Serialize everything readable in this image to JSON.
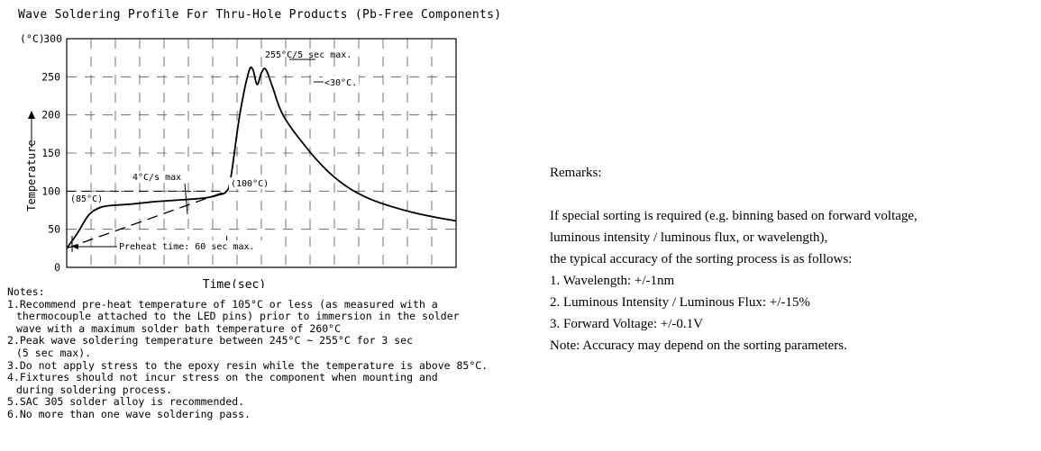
{
  "chart_data": {
    "type": "line",
    "title": "Wave Soldering Profile For Thru-Hole Products (Pb-Free Components)",
    "ylabel": "Temperature",
    "y_unit_label": "(°C)",
    "xlabel": "Time(sec)",
    "ylim": [
      0,
      300
    ],
    "y_ticks": [
      0,
      50,
      100,
      150,
      200,
      250,
      300
    ],
    "y_tick_labels": [
      "0",
      "50",
      "100",
      "150",
      "200",
      "250",
      "300"
    ],
    "grid": true,
    "annotations": {
      "peak": "255°C/5 sec max.",
      "dip": "<30°C.",
      "ramp": "4°C/s max",
      "preheat_end": "(100°C)",
      "preheat_start": "(85°C)",
      "preheat_time": "Preheat time: 60 sec max."
    },
    "series": [
      {
        "style": "solid",
        "x": [
          0,
          5,
          10,
          15,
          20,
          30,
          40,
          50,
          60,
          66,
          70,
          74,
          76,
          80,
          84,
          86,
          88,
          90,
          92,
          95,
          100,
          110,
          120,
          130,
          140,
          150,
          160,
          170,
          180
        ],
        "y": [
          25,
          45,
          68,
          78,
          81,
          83,
          86,
          88,
          90,
          92,
          95,
          100,
          120,
          200,
          255,
          260,
          240,
          255,
          260,
          238,
          200,
          160,
          128,
          105,
          90,
          80,
          72,
          66,
          61
        ]
      },
      {
        "style": "dashed",
        "x": [
          0,
          74
        ],
        "y": [
          25,
          100
        ]
      }
    ]
  },
  "notes": {
    "heading": "Notes:",
    "lines": [
      "1.Recommend pre-heat temperature of 105°C or less (as measured with a",
      "thermocouple attached to the LED pins) prior to immersion in the solder",
      "wave with a maximum solder bath temperature of 260°C",
      "2.Peak wave soldering temperature between 245°C ~ 255°C for 3 sec",
      "(5 sec max).",
      "3.Do not apply stress to the epoxy resin while the temperature is above 85°C.",
      "4.Fixtures should not incur stress on the component when mounting and",
      "during soldering process.",
      "5.SAC 305 solder alloy is recommended.",
      "6.No more than one wave soldering pass."
    ]
  },
  "remarks": {
    "heading": "Remarks:",
    "intro_1": "If special sorting is required (e.g. binning based on forward voltage,",
    "intro_2": "luminous intensity / luminous flux, or wavelength),",
    "intro_3": "the typical accuracy of the sorting process is as follows:",
    "items": [
      "1. Wavelength: +/-1nm",
      "2. Luminous Intensity / Luminous Flux: +/-15%",
      "3. Forward Voltage: +/-0.1V"
    ],
    "note": "Note: Accuracy may depend on the sorting parameters."
  }
}
